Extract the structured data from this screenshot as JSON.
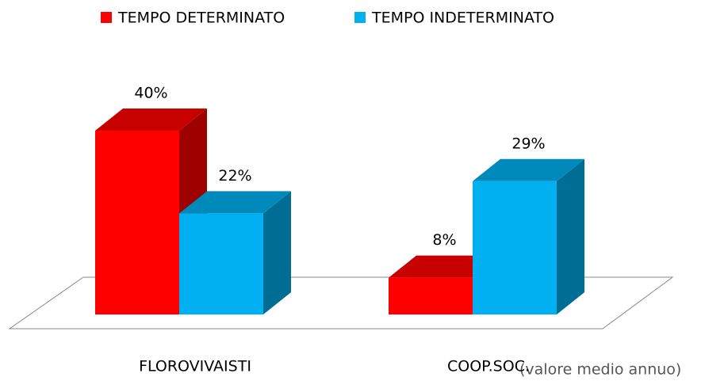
{
  "chart_data": {
    "type": "bar3d",
    "categories": [
      "FLOROVIVAISTI",
      "COOP.SOC."
    ],
    "series": [
      {
        "name": "TEMPO DETERMINATO",
        "color": "#ff0000",
        "values": [
          40,
          8
        ],
        "value_labels": [
          "40%",
          "8%"
        ]
      },
      {
        "name": "TEMPO INDETERMINATO",
        "color": "#00b0f0",
        "values": [
          22,
          29
        ],
        "value_labels": [
          "22%",
          "29%"
        ]
      }
    ],
    "annotation": "(valore medio annuo)",
    "legend": "top"
  }
}
